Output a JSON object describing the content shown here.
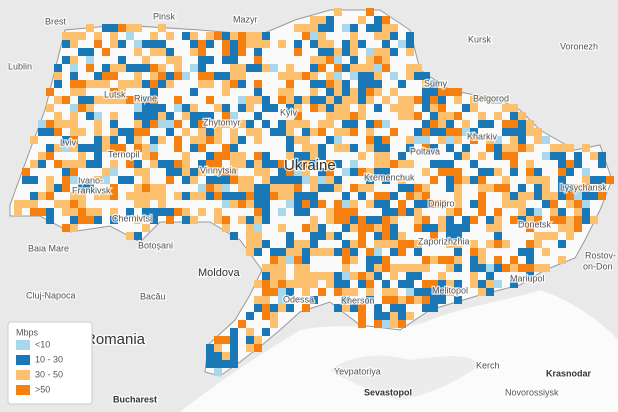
{
  "map": {
    "labels": [
      "Brest",
      "Pinsk",
      "Mazyr",
      "Kursk",
      "Voronezh",
      "Lublin",
      "Lutsk",
      "Rivne",
      "Zhytomyr",
      "Kyiv",
      "Sumy",
      "Belgorod",
      "Kharkiv",
      "Lviv",
      "Ternopil",
      "Poltava",
      "Vinnytsia",
      "Ivano-",
      "Frankivsk",
      "Kremenchuk",
      "Lysychansk",
      "Dnipro",
      "Chernivtsi",
      "Donetsk",
      "Zaporizhzhia",
      "Baia Mare",
      "Botoșani",
      "Rostov-",
      "on-Don",
      "Moldova",
      "Mariupol",
      "Melitopol",
      "Cluj-Napoca",
      "Odessa",
      "Kherson",
      "Bacău",
      "Yevpatoriya",
      "Kerch",
      "Krasnodar",
      "Sevastopol",
      "Novorossiysk",
      "Bucharest"
    ],
    "country": "Ukraine",
    "region": "Romania",
    "legend": {
      "title": "Mbps",
      "items": [
        {
          "name": "<10",
          "color": "#a9d8ec"
        },
        {
          "name": "10 - 30",
          "color": "#1a78b6"
        },
        {
          "name": "30 - 50",
          "color": "#fcc06f"
        },
        {
          "name": ">50",
          "color": "#f5800f"
        }
      ]
    }
  }
}
